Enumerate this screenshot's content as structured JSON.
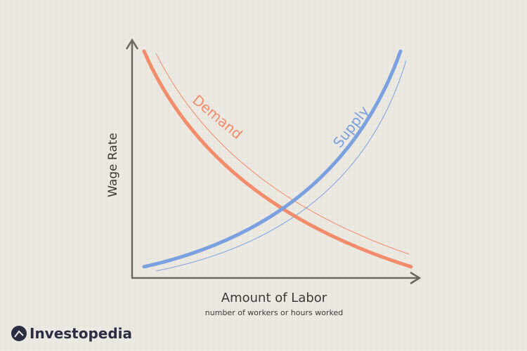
{
  "axes": {
    "y_label": "Wage Rate",
    "x_label": "Amount of Labor",
    "x_sublabel": "number of workers or hours worked"
  },
  "curves": {
    "demand": "Demand",
    "supply": "Supply"
  },
  "brand": "Investopedia"
}
